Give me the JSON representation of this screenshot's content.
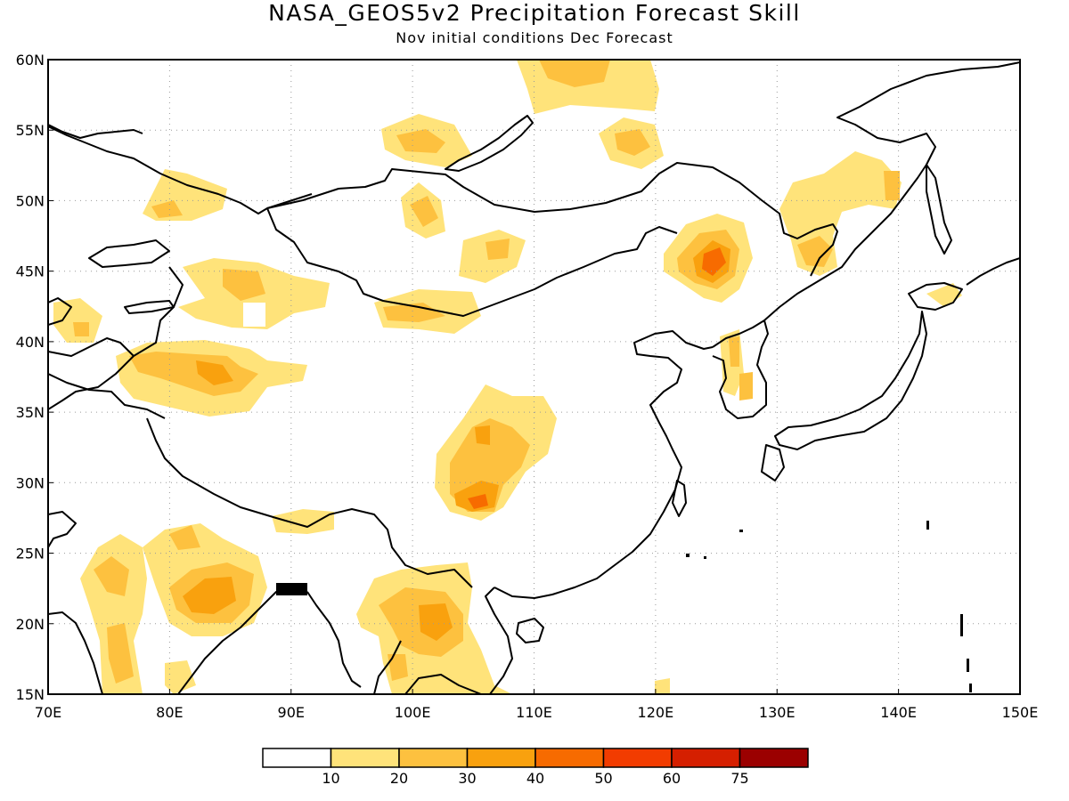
{
  "title": "NASA_GEOS5v2 Precipitation Forecast Skill",
  "subtitle": "Nov initial conditions  Dec Forecast",
  "map": {
    "lon_range": [
      70,
      150
    ],
    "lat_range": [
      15,
      60
    ],
    "lon_ticks": [
      "70E",
      "80E",
      "90E",
      "100E",
      "110E",
      "120E",
      "130E",
      "140E",
      "150E"
    ],
    "lat_ticks": [
      "60N",
      "55N",
      "50N",
      "45N",
      "40N",
      "35N",
      "30N",
      "25N",
      "20N",
      "15N"
    ],
    "grid": "dotted",
    "coastline_color": "#000000"
  },
  "colorbar": {
    "colors": [
      "#ffffff",
      "#ffe37a",
      "#fdc13f",
      "#f9a10e",
      "#f76b00",
      "#f23c00",
      "#d51f00",
      "#9b0000"
    ],
    "labels": [
      "10",
      "20",
      "30",
      "40",
      "50",
      "60",
      "75"
    ]
  },
  "skill_levels": {
    "10": "#ffe37a",
    "20": "#fdc13f",
    "30": "#f9a10e",
    "40": "#f76b00",
    "50": "#f23c00"
  }
}
